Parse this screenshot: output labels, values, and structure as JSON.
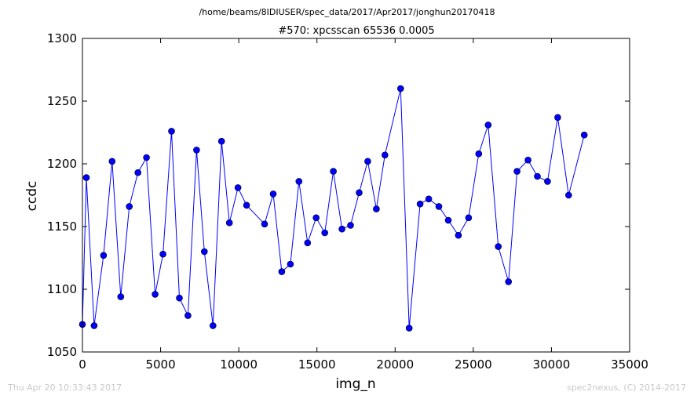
{
  "colors": {
    "series": "#0000ff",
    "marker_edge": "#000000",
    "axes": "#000000",
    "footer": "#c8c8c8"
  },
  "page": {
    "suptitle": "/home/beams/8IDIUSER/spec_data/2017/Apr2017/jonghun20170418",
    "timestamp": "Thu Apr 20 10:33:43 2017",
    "credit": "spec2nexus, (C) 2014-2017"
  },
  "chart_data": {
    "type": "line",
    "title": "#570: xpcsscan 65536 0.0005",
    "xlabel": "img_n",
    "ylabel": "ccdc",
    "xlim": [
      0,
      35000
    ],
    "ylim": [
      1050,
      1300
    ],
    "xticks": [
      0,
      5000,
      10000,
      15000,
      20000,
      25000,
      30000,
      35000
    ],
    "yticks": [
      1050,
      1100,
      1150,
      1200,
      1250,
      1300
    ],
    "xtick_labels": [
      "0",
      "5000",
      "10000",
      "15000",
      "20000",
      "25000",
      "30000",
      "35000"
    ],
    "ytick_labels": [
      "1050",
      "1100",
      "1150",
      "1200",
      "1250",
      "1300"
    ],
    "grid": false,
    "legend": false,
    "series": [
      {
        "marker": "circle",
        "x": [
          0,
          250,
          750,
          1350,
          1900,
          2450,
          3000,
          3550,
          4100,
          4650,
          5150,
          5700,
          6200,
          6750,
          7300,
          7800,
          8350,
          8900,
          9400,
          9950,
          10500,
          11650,
          12200,
          12750,
          13300,
          13850,
          14400,
          14950,
          15500,
          16050,
          16600,
          17150,
          17700,
          18250,
          18800,
          19350,
          20350,
          20900,
          21600,
          22150,
          22800,
          23400,
          24050,
          24700,
          25350,
          25950,
          26600,
          27250,
          27800,
          28500,
          29100,
          29750,
          30400,
          31100,
          32100
        ],
        "y": [
          1072,
          1189,
          1071,
          1127,
          1202,
          1094,
          1166,
          1193,
          1205,
          1096,
          1128,
          1226,
          1093,
          1079,
          1211,
          1130,
          1071,
          1218,
          1153,
          1181,
          1167,
          1152,
          1176,
          1114,
          1120,
          1186,
          1137,
          1157,
          1145,
          1194,
          1148,
          1151,
          1177,
          1202,
          1164,
          1207,
          1260,
          1069,
          1168,
          1172,
          1166,
          1155,
          1143,
          1157,
          1208,
          1231,
          1134,
          1106,
          1194,
          1203,
          1190,
          1186,
          1237,
          1175,
          1223
        ]
      }
    ]
  }
}
